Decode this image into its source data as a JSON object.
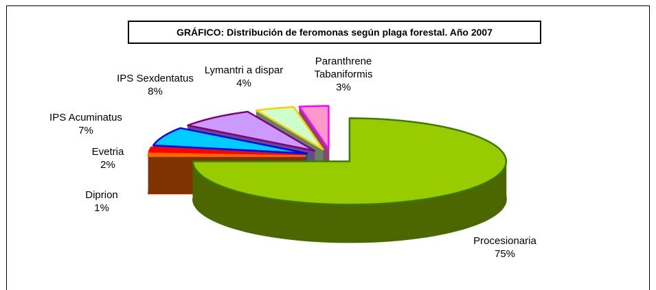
{
  "chart_data": {
    "type": "pie",
    "title": "GRÁFICO: Distribución de feromonas según plaga forestal. Año 2007",
    "categories": [
      "Procesionaria",
      "Diprion",
      "Evetria",
      "IPS Acuminatus",
      "IPS Sexdentatus",
      "Lymantri a dispar",
      "Paranthrene Tabaniformis"
    ],
    "values": [
      75,
      1,
      2,
      7,
      8,
      4,
      3
    ],
    "value_labels": [
      "75%",
      "1%",
      "2%",
      "7%",
      "8%",
      "4%",
      "3%"
    ],
    "colors": [
      "#99cc00",
      "#ff6600",
      "#ff0000",
      "#00ccff",
      "#cc99ff",
      "#ccffcc",
      "#ff99cc"
    ],
    "edge_colors": [
      "#3d7a00",
      "#ff6600",
      "#ff0000",
      "#0000ff",
      "#800080",
      "#ffcc00",
      "#ff00ff"
    ]
  }
}
